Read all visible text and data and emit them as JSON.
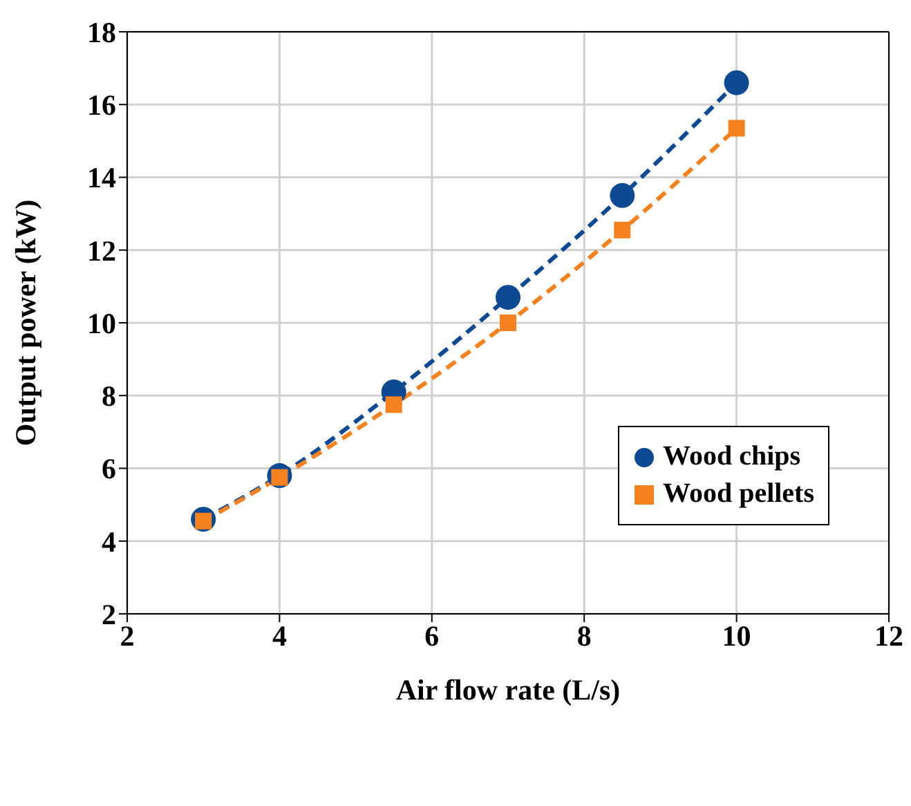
{
  "chart_data": {
    "type": "line",
    "xlabel": "Air flow rate (L/s)",
    "ylabel": "Output power (kW)",
    "x": [
      3,
      4,
      5.5,
      7,
      8.5,
      10
    ],
    "series": [
      {
        "name": "Wood chips",
        "color": "#0e4a94",
        "marker": "circle",
        "values": [
          4.6,
          5.8,
          8.1,
          10.7,
          13.5,
          16.6
        ]
      },
      {
        "name": "Wood pellets",
        "color": "#f5821f",
        "marker": "square",
        "values": [
          4.55,
          5.75,
          7.75,
          10.0,
          12.55,
          15.35
        ]
      }
    ],
    "xlim": [
      2,
      12
    ],
    "xticks": [
      2,
      4,
      6,
      8,
      10,
      12
    ],
    "ylim": [
      2,
      18
    ],
    "yticks": [
      2,
      4,
      6,
      8,
      10,
      12,
      14,
      16,
      18
    ],
    "grid": true,
    "legend": "right",
    "line_style": "dashed"
  }
}
